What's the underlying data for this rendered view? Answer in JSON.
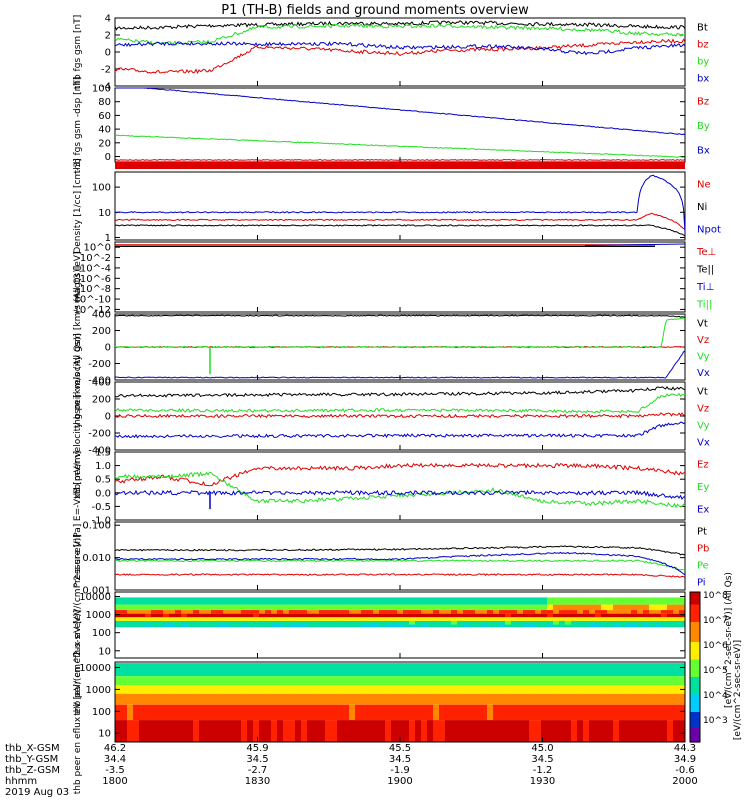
{
  "title": "P1 (TH-B) fields and ground moments overview",
  "date_label": "2019 Aug 03",
  "colors": {
    "black": "#000000",
    "red": "#dd0000",
    "green": "#22dd22",
    "blue": "#0000cc"
  },
  "colorbar": {
    "label": "[eV/(cm^2-sec-sr-eV)]",
    "unit_label": "[eV/(cm^2-sec-sr-eV)] (All Qs)",
    "ticks": [
      "10^8",
      "10^7",
      "10^6",
      "10^5",
      "10^4",
      "10^3"
    ]
  },
  "orbit": {
    "row_labels": [
      "thb_X-GSM",
      "thb_Y-GSM",
      "thb_Z-GSM",
      "hhmm"
    ],
    "columns": [
      {
        "x_gsm": "46.2",
        "y_gsm": "34.4",
        "z_gsm": "-3.5",
        "hhmm": "1800"
      },
      {
        "x_gsm": "45.9",
        "y_gsm": "34.5",
        "z_gsm": "-2.7",
        "hhmm": "1830"
      },
      {
        "x_gsm": "45.5",
        "y_gsm": "34.5",
        "z_gsm": "-1.9",
        "hhmm": "1900"
      },
      {
        "x_gsm": "45.0",
        "y_gsm": "34.5",
        "z_gsm": "-1.2",
        "hhmm": "1930"
      },
      {
        "x_gsm": "44.3",
        "y_gsm": "34.9",
        "z_gsm": "-0.6",
        "hhmm": "2000"
      }
    ]
  },
  "chart_data": [
    {
      "type": "line",
      "panel": 1,
      "ylabel": "thb fgs gsm [nT]",
      "ylim": [
        -4,
        4
      ],
      "ytick_labels": [
        "4",
        "2",
        "0",
        "-2",
        "-4"
      ],
      "x_hhmm": [
        1800,
        1810,
        1820,
        1830,
        1840,
        1850,
        1900,
        1910,
        1920,
        1930,
        1940,
        1950,
        2000
      ],
      "series": [
        {
          "name": "Bt",
          "color": "black",
          "values": [
            2.8,
            2.9,
            3.1,
            3.2,
            3.3,
            3.4,
            3.3,
            3.5,
            3.4,
            3.3,
            3.2,
            3.0,
            2.9
          ]
        },
        {
          "name": "bz",
          "color": "red",
          "values": [
            -2.0,
            -2.4,
            -2.2,
            0.6,
            0.4,
            0.1,
            -0.2,
            0.2,
            0.3,
            0.5,
            0.8,
            1.2,
            1.3
          ]
        },
        {
          "name": "by",
          "color": "green",
          "values": [
            1.5,
            1.0,
            1.2,
            2.9,
            3.0,
            3.1,
            3.0,
            3.1,
            2.9,
            2.8,
            2.6,
            2.2,
            2.0
          ]
        },
        {
          "name": "bx",
          "color": "blue",
          "values": [
            0.8,
            1.0,
            1.0,
            0.9,
            1.0,
            0.9,
            0.5,
            0.6,
            0.7,
            0.3,
            -0.2,
            0.5,
            0.8
          ]
        }
      ]
    },
    {
      "type": "line",
      "panel": 2,
      "ylabel": "thb fgs gsm -dsp [nT]",
      "ylim": [
        -8,
        100
      ],
      "ytick_labels": [
        "100",
        "80",
        "60",
        "40",
        "20",
        "0"
      ],
      "x_hhmm": [
        1800,
        2000
      ],
      "series": [
        {
          "name": "Bz",
          "color": "red",
          "values": [
            -5,
            -5
          ]
        },
        {
          "name": "By",
          "color": "green",
          "values": [
            31,
            -1
          ]
        },
        {
          "name": "Bx",
          "color": "blue",
          "values": [
            104,
            32
          ]
        }
      ]
    },
    {
      "type": "line",
      "panel": 3,
      "ylabel": "Density [1/cc] [cm-3]",
      "yscale": "log",
      "ytick_labels": [
        "100",
        "10",
        "1"
      ],
      "x_hhmm": [
        1800,
        1830,
        1900,
        1930,
        1950,
        1953,
        2000
      ],
      "series": [
        {
          "name": "Ne",
          "color": "red",
          "values": [
            5,
            5,
            5,
            5,
            5,
            9,
            2
          ]
        },
        {
          "name": "Ni",
          "color": "black",
          "values": [
            3,
            3,
            3,
            3,
            3,
            3,
            1.2
          ]
        },
        {
          "name": "Npot",
          "color": "blue",
          "values": [
            10,
            10,
            10,
            10,
            10,
            300,
            1.5
          ]
        }
      ]
    },
    {
      "type": "line",
      "panel": 4,
      "ylabel": "magt3 [eV]",
      "yscale": "log",
      "ytick_labels": [
        "10^0",
        "10^-2",
        "10^-4",
        "10^-6",
        "10^-8",
        "10^-10",
        "10^-12"
      ],
      "series": [
        {
          "name": "Te⊥",
          "color": "red"
        },
        {
          "name": "Te||",
          "color": "black"
        },
        {
          "name": "Ti⊥",
          "color": "blue"
        },
        {
          "name": "Ti||",
          "color": "green"
        }
      ]
    },
    {
      "type": "line",
      "panel": 5,
      "ylabel": "thb peir velocity gsm [km/s (All Qs)]",
      "ylim": [
        -400,
        400
      ],
      "ytick_labels": [
        "400",
        "200",
        "0",
        "-200",
        "-400"
      ],
      "x_hhmm": [
        1800,
        1830,
        1900,
        1930,
        1955,
        1956,
        2000
      ],
      "series": [
        {
          "name": "Vt",
          "color": "black",
          "values": [
            380,
            380,
            380,
            380,
            380,
            380,
            360
          ]
        },
        {
          "name": "Vz",
          "color": "red",
          "values": [
            0,
            0,
            0,
            0,
            0,
            0,
            0
          ]
        },
        {
          "name": "Vy",
          "color": "green",
          "values": [
            0,
            0,
            0,
            0,
            0,
            330,
            350
          ]
        },
        {
          "name": "Vx",
          "color": "blue",
          "values": [
            -370,
            -370,
            -370,
            -370,
            -370,
            -370,
            -40
          ]
        }
      ]
    },
    {
      "type": "line",
      "panel": 6,
      "ylabel": "thb peer velocity gsm [km/s (All Qs)]",
      "ylim": [
        -400,
        400
      ],
      "ytick_labels": [
        "400",
        "200",
        "0",
        "-200",
        "-400"
      ],
      "x_hhmm": [
        1800,
        1830,
        1900,
        1930,
        1950,
        1955,
        2000
      ],
      "series": [
        {
          "name": "Vt",
          "color": "black",
          "values": [
            240,
            250,
            255,
            270,
            300,
            330,
            320
          ]
        },
        {
          "name": "Vz",
          "color": "red",
          "values": [
            0,
            0,
            0,
            0,
            0,
            20,
            20
          ]
        },
        {
          "name": "Vy",
          "color": "green",
          "values": [
            70,
            60,
            70,
            60,
            50,
            240,
            250
          ]
        },
        {
          "name": "Vx",
          "color": "blue",
          "values": [
            -240,
            -235,
            -230,
            -230,
            -230,
            -110,
            -80
          ]
        }
      ]
    },
    {
      "type": "line",
      "panel": 7,
      "ylabel": "E=-VxB [mV/m]",
      "ylim": [
        -1.0,
        1.5
      ],
      "ytick_labels": [
        "1.5",
        "1.0",
        "0.5",
        "0.0",
        "-0.5",
        "-1.0"
      ],
      "x_hhmm": [
        1800,
        1810,
        1820,
        1830,
        1840,
        1850,
        1900,
        1910,
        1920,
        1930,
        1940,
        1950,
        2000
      ],
      "series": [
        {
          "name": "Ez",
          "color": "red",
          "values": [
            0.4,
            0.6,
            0.3,
            0.9,
            0.9,
            0.9,
            1.0,
            1.0,
            1.0,
            1.0,
            1.0,
            0.9,
            0.7
          ]
        },
        {
          "name": "Ey",
          "color": "green",
          "values": [
            0.6,
            0.6,
            0.7,
            -0.3,
            -0.3,
            -0.2,
            -0.1,
            0.0,
            0.1,
            -0.3,
            -0.4,
            -0.3,
            -0.5
          ]
        },
        {
          "name": "Ex",
          "color": "blue",
          "values": [
            0.0,
            0.0,
            0.0,
            0.0,
            0.0,
            0.0,
            0.0,
            0.0,
            0.0,
            0.0,
            0.0,
            0.0,
            -0.2
          ]
        }
      ]
    },
    {
      "type": "line",
      "panel": 8,
      "ylabel": "Pressure [nPa]",
      "yscale": "log",
      "ytick_labels": [
        "0.100",
        "0.010",
        "0.001"
      ],
      "x_hhmm": [
        1800,
        1830,
        1900,
        1920,
        1935,
        1950,
        2000
      ],
      "series": [
        {
          "name": "Pt",
          "color": "black",
          "values": [
            0.017,
            0.017,
            0.018,
            0.02,
            0.022,
            0.02,
            0.012
          ]
        },
        {
          "name": "Pb",
          "color": "red",
          "values": [
            0.003,
            0.003,
            0.003,
            0.003,
            0.003,
            0.003,
            0.0025
          ]
        },
        {
          "name": "Pe",
          "color": "green",
          "values": [
            0.008,
            0.008,
            0.008,
            0.008,
            0.008,
            0.008,
            0.004
          ]
        },
        {
          "name": "Pi",
          "color": "blue",
          "values": [
            0.009,
            0.009,
            0.009,
            0.012,
            0.014,
            0.011,
            0.003
          ]
        }
      ]
    },
    {
      "type": "heatmap",
      "panel": 9,
      "ylabel": "thb peir en eflux eV [eV/(cm^2-s-sr-eV)]",
      "yscale": "log",
      "ytick_labels": [
        "10000",
        "1000",
        "100",
        "10"
      ]
    },
    {
      "type": "heatmap",
      "panel": 10,
      "ylabel": "thb peer en eflux eV [eV/(cm^2-s-sr-eV)]",
      "yscale": "log",
      "ytick_labels": [
        "10000",
        "1000",
        "100",
        "10"
      ]
    }
  ]
}
